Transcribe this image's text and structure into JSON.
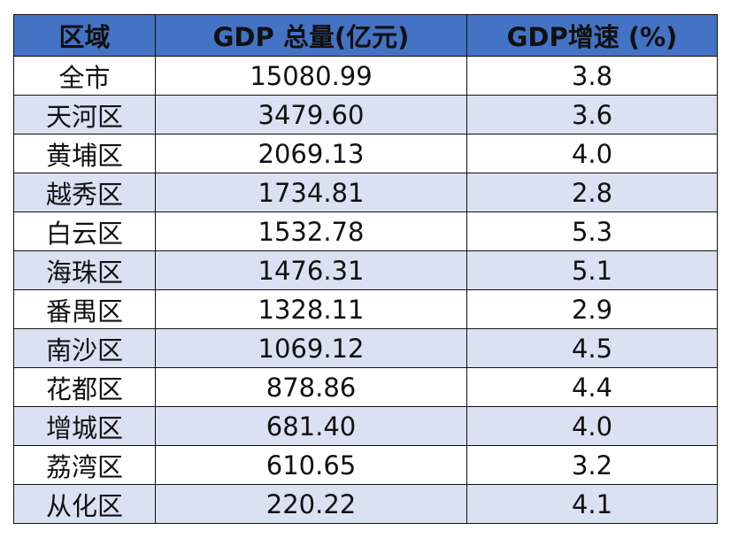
{
  "table": {
    "header_bg": "#4472c4",
    "stripe_bg": "#d9e1f2",
    "headers": [
      "区域",
      "GDP 总量(亿元)",
      "GDP增速 (%)"
    ],
    "rows": [
      [
        "全市",
        "15080.99",
        "3.8"
      ],
      [
        "天河区",
        "3479.60",
        "3.6"
      ],
      [
        "黄埔区",
        "2069.13",
        "4.0"
      ],
      [
        "越秀区",
        "1734.81",
        "2.8"
      ],
      [
        "白云区",
        "1532.78",
        "5.3"
      ],
      [
        "海珠区",
        "1476.31",
        "5.1"
      ],
      [
        "番禺区",
        "1328.11",
        "2.9"
      ],
      [
        "南沙区",
        "1069.12",
        "4.5"
      ],
      [
        "花都区",
        "878.86",
        "4.4"
      ],
      [
        "增城区",
        "681.40",
        "4.0"
      ],
      [
        "荔湾区",
        "610.65",
        "3.2"
      ],
      [
        "从化区",
        "220.22",
        "4.1"
      ]
    ]
  }
}
